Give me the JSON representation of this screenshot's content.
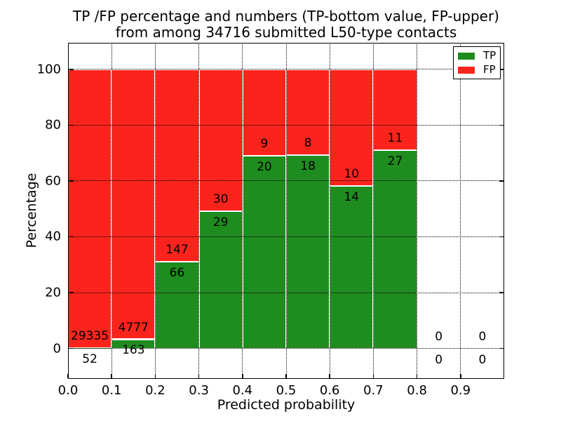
{
  "chart_data": {
    "type": "bar",
    "stacked": true,
    "title": "TP /FP percentage and numbers (TP-bottom value, FP-upper)",
    "subtitle": "from among 34716 submitted L50-type contacts",
    "xlabel": "Predicted probability",
    "ylabel": "Percentage",
    "total_submitted": 34716,
    "xlim": [
      0.0,
      1.0
    ],
    "ylim": [
      -10.9,
      109.5
    ],
    "xticks": [
      "0.0",
      "0.1",
      "0.2",
      "0.3",
      "0.4",
      "0.5",
      "0.6",
      "0.7",
      "0.8",
      "0.9"
    ],
    "yticks": [
      "0",
      "20",
      "40",
      "60",
      "80",
      "100"
    ],
    "grid": "dotted, both axes, drawn over bars",
    "bar_edge_color": "#ffffff",
    "legend": {
      "position": "upper right",
      "entries": [
        {
          "label": "TP",
          "color": "#1f8c1f"
        },
        {
          "label": "FP",
          "color": "#fa241c"
        }
      ]
    },
    "annotation_rule": "FP count printed above TP/FP boundary, TP count printed below boundary; each bar scaled to 100%",
    "bars": [
      {
        "bin": "0.0-0.1",
        "tp": 52,
        "fp": 29335
      },
      {
        "bin": "0.1-0.2",
        "tp": 163,
        "fp": 4777
      },
      {
        "bin": "0.2-0.3",
        "tp": 66,
        "fp": 147
      },
      {
        "bin": "0.3-0.4",
        "tp": 29,
        "fp": 30
      },
      {
        "bin": "0.4-0.5",
        "tp": 20,
        "fp": 9
      },
      {
        "bin": "0.5-0.6",
        "tp": 18,
        "fp": 8
      },
      {
        "bin": "0.6-0.7",
        "tp": 14,
        "fp": 10
      },
      {
        "bin": "0.7-0.8",
        "tp": 27,
        "fp": 11
      },
      {
        "bin": "0.8-0.9",
        "tp": 0,
        "fp": 0
      },
      {
        "bin": "0.9-1.0",
        "tp": 0,
        "fp": 0
      }
    ]
  }
}
